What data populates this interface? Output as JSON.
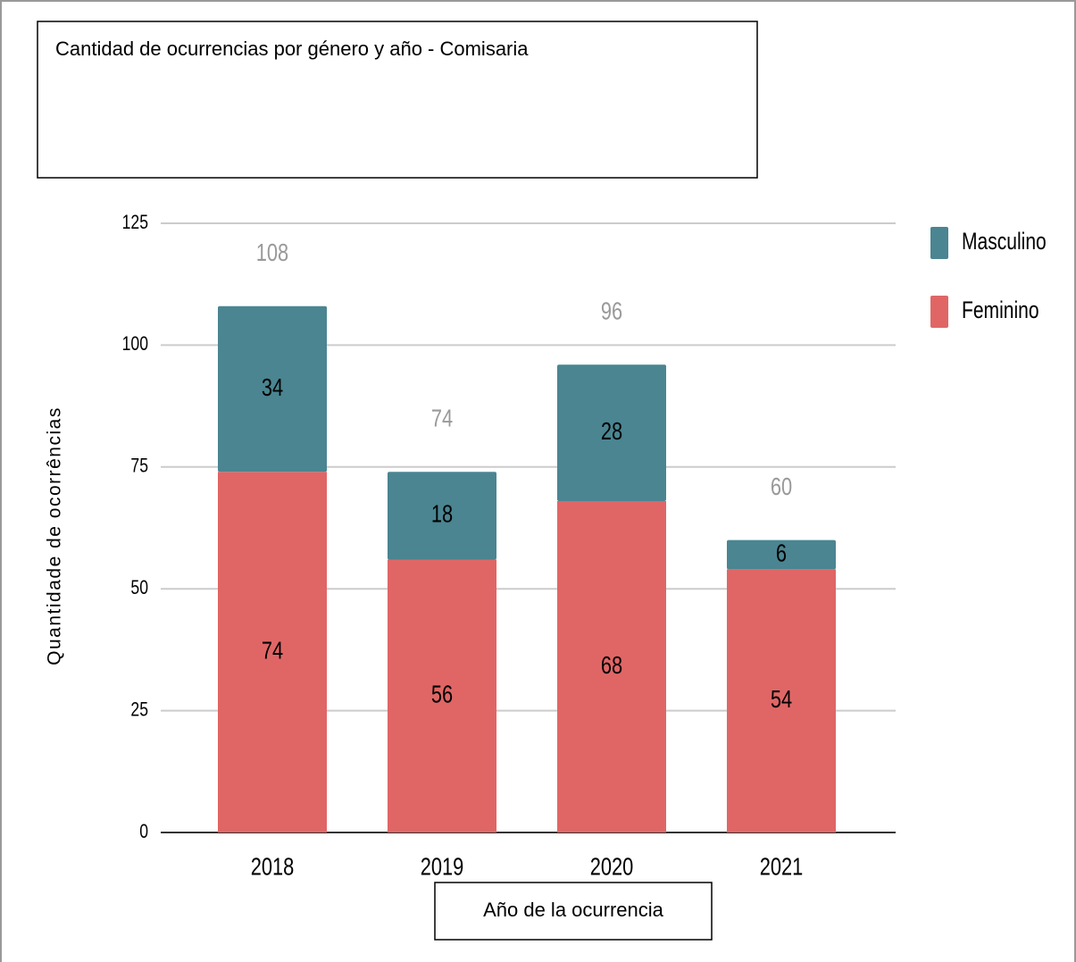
{
  "chart_data": {
    "type": "stacked_bar",
    "title": "Cantidad de ocurrencias por género y año - Comisaria",
    "x_label": "Año de la ocurrencia",
    "y_label": "Quantidade de ocorrências",
    "categories": [
      "2018",
      "2019",
      "2020",
      "2021"
    ],
    "series": [
      {
        "name": "Masculino",
        "color": "#4a8591",
        "values": [
          34,
          18,
          28,
          6
        ]
      },
      {
        "name": "Feminino",
        "color": "#e06666",
        "values": [
          74,
          56,
          68,
          54
        ]
      }
    ],
    "totals": [
      108,
      74,
      96,
      60
    ],
    "ylim": [
      0,
      125
    ],
    "yticks": [
      0,
      25,
      50,
      75,
      100,
      125
    ],
    "grid": true,
    "legend": "right"
  }
}
